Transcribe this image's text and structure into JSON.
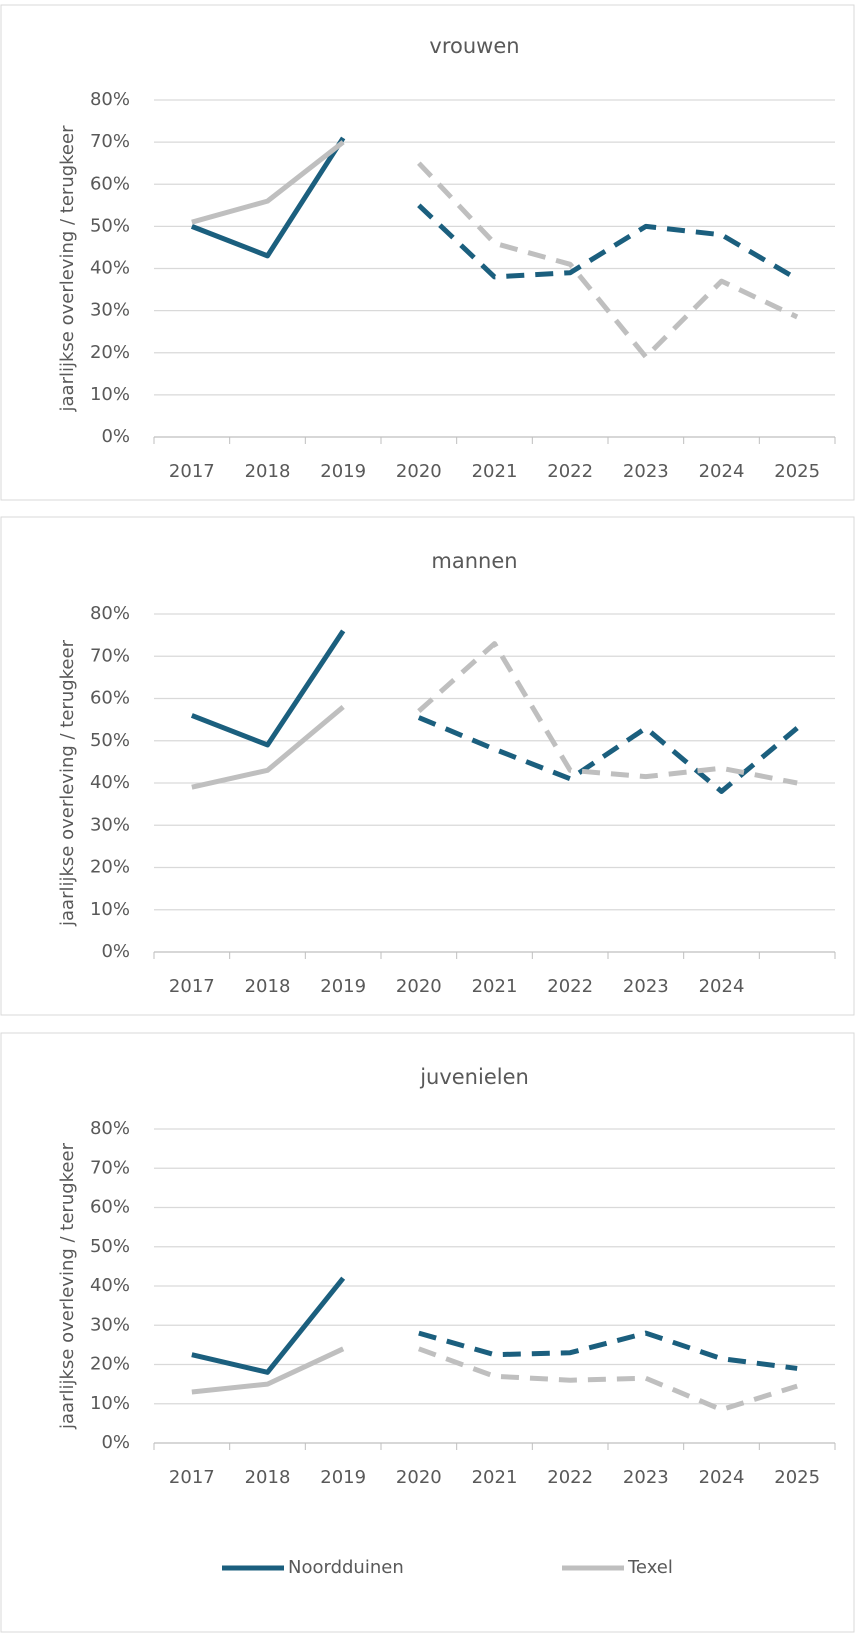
{
  "chart_data": [
    {
      "type": "line",
      "title": "vrouwen",
      "ylabel": "jaarlijkse overleving / terugkeer",
      "categories": [
        "2017",
        "2018",
        "2019",
        "2020",
        "2021",
        "2022",
        "2023",
        "2024",
        "2025"
      ],
      "line_styles": [
        "solid",
        "solid",
        "solid",
        "dashed",
        "dashed",
        "dashed",
        "dashed",
        "dashed",
        "dashed"
      ],
      "series": [
        {
          "name": "Noordduinen",
          "color": "#1b5f7e",
          "values": [
            50,
            43,
            71,
            55,
            38,
            39,
            50,
            48,
            37.5
          ]
        },
        {
          "name": "Texel",
          "color": "#bfbfbf",
          "values": [
            51,
            56,
            70,
            65,
            46,
            41,
            19,
            37,
            28.5
          ]
        }
      ],
      "ylim": [
        0,
        80
      ],
      "yticks": [
        {
          "value": 0,
          "label": "0%"
        },
        {
          "value": 10,
          "label": "10%"
        },
        {
          "value": 20,
          "label": "20%"
        },
        {
          "value": 30,
          "label": "30%"
        },
        {
          "value": 40,
          "label": "40%"
        },
        {
          "value": 50,
          "label": "50%"
        },
        {
          "value": 60,
          "label": "60%"
        },
        {
          "value": 70,
          "label": "70%"
        },
        {
          "value": 80,
          "label": "80%"
        }
      ],
      "grid": true
    },
    {
      "type": "line",
      "title": "mannen",
      "ylabel": "jaarlijkse overleving / terugkeer",
      "categories": [
        "2017",
        "2018",
        "2019",
        "2020",
        "2021",
        "2022",
        "2023",
        "2024",
        null
      ],
      "line_styles": [
        "solid",
        "solid",
        "solid",
        "dashed",
        "dashed",
        "dashed",
        "dashed",
        "dashed",
        "dashed"
      ],
      "series": [
        {
          "name": "Noordduinen",
          "color": "#1b5f7e",
          "values": [
            56,
            49,
            76,
            55.5,
            48,
            41,
            53,
            38,
            53
          ]
        },
        {
          "name": "Texel",
          "color": "#bfbfbf",
          "values": [
            39,
            43,
            58,
            57,
            73,
            43,
            41.5,
            43.5,
            40
          ]
        }
      ],
      "ylim": [
        0,
        80
      ],
      "yticks": [
        {
          "value": 0,
          "label": "0%"
        },
        {
          "value": 10,
          "label": "10%"
        },
        {
          "value": 20,
          "label": "20%"
        },
        {
          "value": 30,
          "label": "30%"
        },
        {
          "value": 40,
          "label": "40%"
        },
        {
          "value": 50,
          "label": "50%"
        },
        {
          "value": 60,
          "label": "60%"
        },
        {
          "value": 70,
          "label": "70%"
        },
        {
          "value": 80,
          "label": "80%"
        }
      ],
      "grid": true
    },
    {
      "type": "line",
      "title": "juvenielen",
      "ylabel": "jaarlijkse overleving / terugkeer",
      "categories": [
        "2017",
        "2018",
        "2019",
        "2020",
        "2021",
        "2022",
        "2023",
        "2024",
        "2025"
      ],
      "line_styles": [
        "solid",
        "solid",
        "solid",
        "dashed",
        "dashed",
        "dashed",
        "dashed",
        "dashed",
        "dashed"
      ],
      "series": [
        {
          "name": "Noordduinen",
          "color": "#1b5f7e",
          "values": [
            22.5,
            18,
            42,
            28,
            22.5,
            23,
            28,
            21.5,
            19
          ]
        },
        {
          "name": "Texel",
          "color": "#bfbfbf",
          "values": [
            13,
            15,
            24,
            24,
            17,
            16,
            16.5,
            8.5,
            14.5
          ]
        }
      ],
      "ylim": [
        0,
        80
      ],
      "yticks": [
        {
          "value": 0,
          "label": "0%"
        },
        {
          "value": 10,
          "label": "10%"
        },
        {
          "value": 20,
          "label": "20%"
        },
        {
          "value": 30,
          "label": "30%"
        },
        {
          "value": 40,
          "label": "40%"
        },
        {
          "value": 50,
          "label": "50%"
        },
        {
          "value": 60,
          "label": "60%"
        },
        {
          "value": 70,
          "label": "70%"
        },
        {
          "value": 80,
          "label": "80%"
        }
      ],
      "grid": true,
      "legend": "bottom"
    }
  ]
}
